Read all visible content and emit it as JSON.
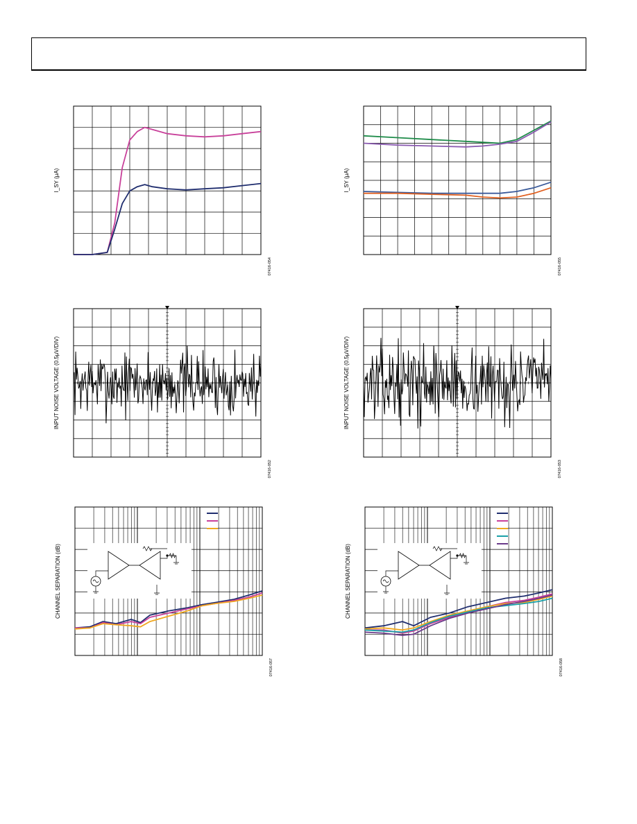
{
  "page": {
    "header_text": ""
  },
  "charts": [
    {
      "id": "fig1",
      "type": "line",
      "ylabel": "I_SY (µA)",
      "code": "07416-054",
      "grid": {
        "cols": 10,
        "rows": 7
      },
      "xlim": [
        0,
        10
      ],
      "ylim": [
        0,
        7
      ],
      "series": [
        {
          "color": "#c8409a",
          "points": [
            [
              0,
              0
            ],
            [
              1,
              0
            ],
            [
              1.8,
              0.1
            ],
            [
              2.2,
              1.5
            ],
            [
              2.6,
              4.1
            ],
            [
              3,
              5.4
            ],
            [
              3.4,
              5.8
            ],
            [
              3.8,
              6.0
            ],
            [
              4.2,
              5.9
            ],
            [
              5,
              5.7
            ],
            [
              6,
              5.6
            ],
            [
              7,
              5.55
            ],
            [
              8,
              5.6
            ],
            [
              9,
              5.7
            ],
            [
              10,
              5.8
            ]
          ]
        },
        {
          "color": "#1f2d6e",
          "points": [
            [
              0,
              0
            ],
            [
              1,
              0
            ],
            [
              1.8,
              0.1
            ],
            [
              2.2,
              1.2
            ],
            [
              2.6,
              2.4
            ],
            [
              3,
              3.0
            ],
            [
              3.4,
              3.2
            ],
            [
              3.8,
              3.3
            ],
            [
              4.2,
              3.2
            ],
            [
              5,
              3.1
            ],
            [
              6,
              3.05
            ],
            [
              7,
              3.1
            ],
            [
              8,
              3.15
            ],
            [
              9,
              3.25
            ],
            [
              10,
              3.35
            ]
          ]
        }
      ]
    },
    {
      "id": "fig2",
      "type": "line",
      "ylabel": "I_SY (µA)",
      "code": "07416-055",
      "grid": {
        "cols": 11,
        "rows": 8
      },
      "xlim": [
        0,
        11
      ],
      "ylim": [
        0,
        8
      ],
      "series": [
        {
          "color": "#1f8c4a",
          "points": [
            [
              0,
              6.4
            ],
            [
              2,
              6.3
            ],
            [
              4,
              6.2
            ],
            [
              6,
              6.1
            ],
            [
              7,
              6.05
            ],
            [
              8,
              6.0
            ],
            [
              9,
              6.2
            ],
            [
              10,
              6.7
            ],
            [
              11,
              7.2
            ]
          ]
        },
        {
          "color": "#8a5ab0",
          "points": [
            [
              0,
              6.0
            ],
            [
              2,
              5.9
            ],
            [
              4,
              5.85
            ],
            [
              6,
              5.8
            ],
            [
              7,
              5.85
            ],
            [
              8,
              5.95
            ],
            [
              9,
              6.1
            ],
            [
              10,
              6.6
            ],
            [
              11,
              7.15
            ]
          ]
        },
        {
          "color": "#3a5a9a",
          "points": [
            [
              0,
              3.4
            ],
            [
              2,
              3.35
            ],
            [
              4,
              3.3
            ],
            [
              6,
              3.3
            ],
            [
              7,
              3.3
            ],
            [
              8,
              3.3
            ],
            [
              9,
              3.4
            ],
            [
              10,
              3.6
            ],
            [
              11,
              3.9
            ]
          ]
        },
        {
          "color": "#e06020",
          "points": [
            [
              0,
              3.3
            ],
            [
              2,
              3.3
            ],
            [
              4,
              3.25
            ],
            [
              6,
              3.2
            ],
            [
              7,
              3.1
            ],
            [
              8,
              3.05
            ],
            [
              9,
              3.1
            ],
            [
              10,
              3.3
            ],
            [
              11,
              3.6
            ]
          ]
        }
      ]
    },
    {
      "id": "fig3",
      "type": "line",
      "ylabel": "INPUT NOISE VOLTAGE (0.5µV/DIV)",
      "code": "07416-052",
      "grid": {
        "cols": 10,
        "rows": 8
      },
      "xlim": [
        0,
        10
      ],
      "ylim": [
        0,
        8
      ],
      "noise": {
        "seed": 7,
        "count": 260,
        "center": 4,
        "amp": 1.6,
        "color": "#000000"
      },
      "series": []
    },
    {
      "id": "fig4",
      "type": "line",
      "ylabel": "INPUT NOISE VOLTAGE (0.5µV/DIV)",
      "code": "07416-053",
      "grid": {
        "cols": 10,
        "rows": 8
      },
      "xlim": [
        0,
        10
      ],
      "ylim": [
        0,
        8
      ],
      "noise": {
        "seed": 13,
        "count": 260,
        "center": 4,
        "amp": 1.8,
        "color": "#000000"
      },
      "series": []
    },
    {
      "id": "fig5",
      "type": "line",
      "ylabel": "CHANNEL SEPARATION (dB)",
      "code": "07416-057",
      "log_x": true,
      "grid": {
        "cols": 10,
        "rows": 7
      },
      "xlim": [
        0,
        10
      ],
      "ylim": [
        0,
        7
      ],
      "legend_colors": [
        "#1f2d6e",
        "#c8409a",
        "#f0a820"
      ],
      "series": [
        {
          "color": "#1f2d6e",
          "points": [
            [
              0,
              1.3
            ],
            [
              0.8,
              1.35
            ],
            [
              1.5,
              1.6
            ],
            [
              2.2,
              1.5
            ],
            [
              3,
              1.7
            ],
            [
              3.5,
              1.55
            ],
            [
              4,
              1.9
            ],
            [
              5,
              2.1
            ],
            [
              6,
              2.25
            ],
            [
              6.8,
              2.4
            ],
            [
              7.5,
              2.5
            ],
            [
              8.5,
              2.65
            ],
            [
              9.3,
              2.85
            ],
            [
              10,
              3.05
            ]
          ]
        },
        {
          "color": "#c8409a",
          "points": [
            [
              0,
              1.3
            ],
            [
              0.8,
              1.3
            ],
            [
              1.5,
              1.55
            ],
            [
              2.2,
              1.45
            ],
            [
              3,
              1.6
            ],
            [
              3.5,
              1.5
            ],
            [
              4,
              1.8
            ],
            [
              5,
              2.0
            ],
            [
              6,
              2.2
            ],
            [
              6.8,
              2.35
            ],
            [
              7.5,
              2.45
            ],
            [
              8.5,
              2.6
            ],
            [
              9.3,
              2.75
            ],
            [
              10,
              2.95
            ]
          ]
        },
        {
          "color": "#f0a820",
          "points": [
            [
              0,
              1.25
            ],
            [
              0.8,
              1.3
            ],
            [
              1.5,
              1.5
            ],
            [
              2.2,
              1.45
            ],
            [
              3,
              1.4
            ],
            [
              3.5,
              1.35
            ],
            [
              4,
              1.6
            ],
            [
              5,
              1.85
            ],
            [
              6,
              2.1
            ],
            [
              6.8,
              2.35
            ],
            [
              7.5,
              2.45
            ],
            [
              8.5,
              2.55
            ],
            [
              9.3,
              2.7
            ],
            [
              10,
              2.85
            ]
          ]
        }
      ]
    },
    {
      "id": "fig6",
      "type": "line",
      "ylabel": "CHANNEL SEPARATION (dB)",
      "code": "07416-058",
      "log_x": true,
      "grid": {
        "cols": 10,
        "rows": 7
      },
      "xlim": [
        0,
        10
      ],
      "ylim": [
        0,
        7
      ],
      "legend_colors": [
        "#1f2d6e",
        "#c8409a",
        "#f0a820",
        "#1aa0a8",
        "#6a3a8a"
      ],
      "series": [
        {
          "color": "#1f2d6e",
          "points": [
            [
              0,
              1.3
            ],
            [
              1,
              1.4
            ],
            [
              2,
              1.6
            ],
            [
              2.6,
              1.4
            ],
            [
              3.5,
              1.8
            ],
            [
              4.5,
              2.0
            ],
            [
              5.5,
              2.3
            ],
            [
              6.5,
              2.5
            ],
            [
              7.5,
              2.7
            ],
            [
              8.5,
              2.8
            ],
            [
              9.3,
              2.95
            ],
            [
              10,
              3.1
            ]
          ]
        },
        {
          "color": "#c8409a",
          "points": [
            [
              0,
              1.2
            ],
            [
              1,
              1.2
            ],
            [
              2,
              1.05
            ],
            [
              2.6,
              1.15
            ],
            [
              3.5,
              1.5
            ],
            [
              4.5,
              1.8
            ],
            [
              5.5,
              2.05
            ],
            [
              6.5,
              2.3
            ],
            [
              7.5,
              2.5
            ],
            [
              8.5,
              2.6
            ],
            [
              9.3,
              2.75
            ],
            [
              10,
              2.9
            ]
          ]
        },
        {
          "color": "#f0a820",
          "points": [
            [
              0,
              1.25
            ],
            [
              1,
              1.3
            ],
            [
              2,
              1.2
            ],
            [
              2.6,
              1.3
            ],
            [
              3.5,
              1.6
            ],
            [
              4.5,
              1.9
            ],
            [
              5.5,
              2.1
            ],
            [
              6.5,
              2.3
            ],
            [
              7.5,
              2.45
            ],
            [
              8.5,
              2.5
            ],
            [
              9.3,
              2.65
            ],
            [
              10,
              2.8
            ]
          ]
        },
        {
          "color": "#1aa0a8",
          "points": [
            [
              0,
              1.2
            ],
            [
              1,
              1.15
            ],
            [
              2,
              1.1
            ],
            [
              2.6,
              1.2
            ],
            [
              3.5,
              1.55
            ],
            [
              4.5,
              1.85
            ],
            [
              5.5,
              2.05
            ],
            [
              6.5,
              2.25
            ],
            [
              7.5,
              2.35
            ],
            [
              8.5,
              2.45
            ],
            [
              9.3,
              2.55
            ],
            [
              10,
              2.7
            ]
          ]
        },
        {
          "color": "#6a3a8a",
          "points": [
            [
              0,
              1.1
            ],
            [
              1,
              1.05
            ],
            [
              2,
              0.95
            ],
            [
              2.6,
              1.0
            ],
            [
              3.5,
              1.4
            ],
            [
              4.5,
              1.75
            ],
            [
              5.5,
              2.0
            ],
            [
              6.5,
              2.2
            ],
            [
              7.5,
              2.4
            ],
            [
              8.5,
              2.55
            ],
            [
              9.3,
              2.7
            ],
            [
              10,
              2.85
            ]
          ]
        }
      ]
    }
  ]
}
